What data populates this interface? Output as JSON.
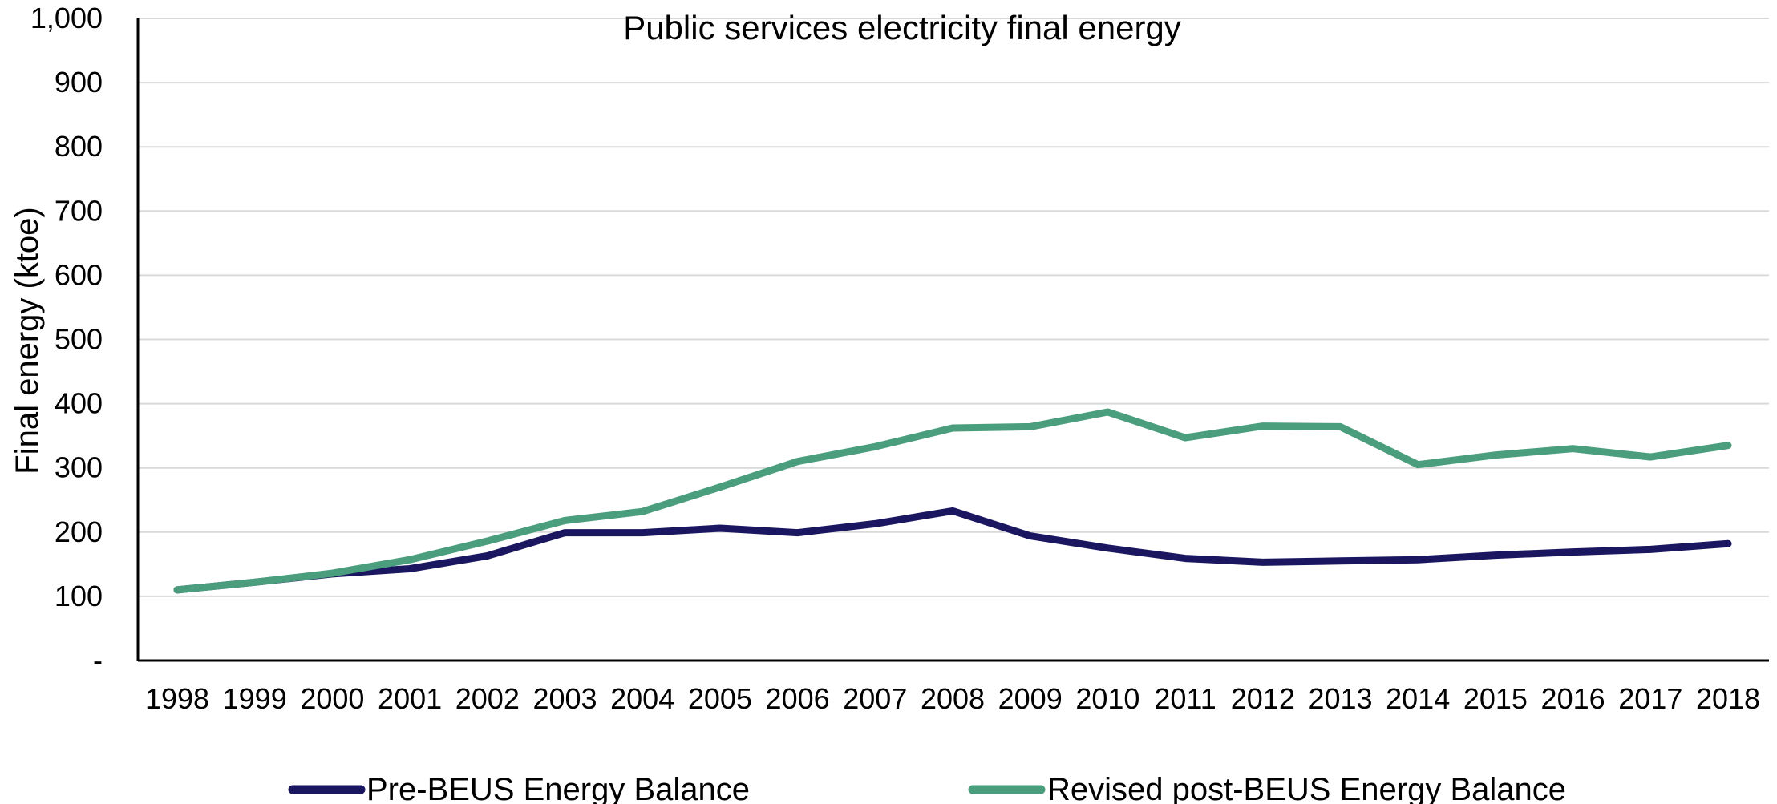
{
  "chart_data": {
    "type": "line",
    "title": "Public services electricity final energy",
    "xlabel": "",
    "ylabel": "Final energy (ktoe)",
    "ylim": [
      0,
      1000
    ],
    "y_ticks": [
      {
        "value": 0,
        "label": "-"
      },
      {
        "value": 100,
        "label": "100"
      },
      {
        "value": 200,
        "label": "200"
      },
      {
        "value": 300,
        "label": "300"
      },
      {
        "value": 400,
        "label": "400"
      },
      {
        "value": 500,
        "label": "500"
      },
      {
        "value": 600,
        "label": "600"
      },
      {
        "value": 700,
        "label": "700"
      },
      {
        "value": 800,
        "label": "800"
      },
      {
        "value": 900,
        "label": "900"
      },
      {
        "value": 1000,
        "label": "1,000"
      }
    ],
    "categories": [
      "1998",
      "1999",
      "2000",
      "2001",
      "2002",
      "2003",
      "2004",
      "2005",
      "2006",
      "2007",
      "2008",
      "2009",
      "2010",
      "2011",
      "2012",
      "2013",
      "2014",
      "2015",
      "2016",
      "2017",
      "2018"
    ],
    "grid": "horizontal",
    "legend_position": "bottom",
    "series": [
      {
        "name": "Pre-BEUS Energy Balance",
        "color": "#1a1760",
        "values": [
          110,
          122,
          135,
          143,
          163,
          199,
          199,
          206,
          199,
          213,
          233,
          194,
          175,
          159,
          153,
          155,
          157,
          164,
          169,
          173,
          182
        ]
      },
      {
        "name": "Revised post-BEUS Energy Balance",
        "color": "#4a9e7e",
        "values": [
          110,
          122,
          136,
          157,
          186,
          218,
          232,
          270,
          310,
          333,
          362,
          364,
          387,
          347,
          365,
          364,
          305,
          320,
          330,
          317,
          335
        ]
      }
    ]
  }
}
